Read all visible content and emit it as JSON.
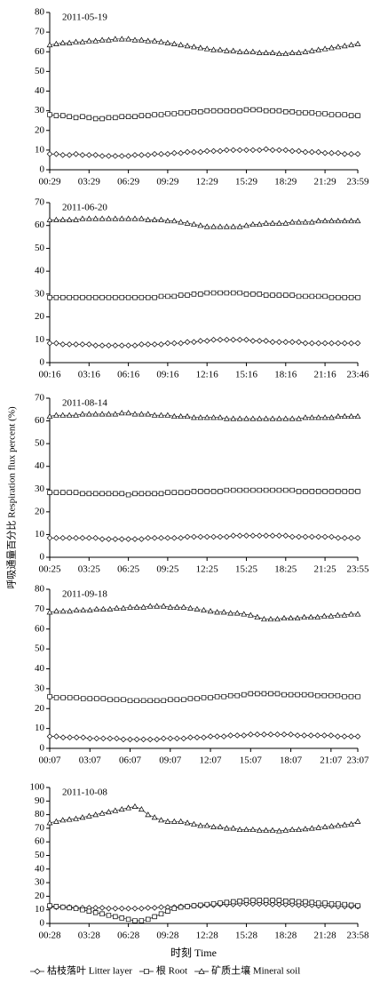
{
  "chart_data": [
    {
      "type": "line",
      "subtitle": "2011-05-19",
      "ylim": [
        0,
        80
      ],
      "yticks": [
        0,
        10,
        20,
        30,
        40,
        50,
        60,
        70,
        80
      ],
      "categories": [
        "00:29",
        null,
        null,
        null,
        null,
        null,
        "03:29",
        null,
        null,
        null,
        null,
        null,
        "06:29",
        null,
        null,
        null,
        null,
        null,
        "09:29",
        null,
        null,
        null,
        null,
        null,
        "12:29",
        null,
        null,
        null,
        null,
        null,
        "15:29",
        null,
        null,
        null,
        null,
        null,
        "18:29",
        null,
        null,
        null,
        null,
        null,
        "21:29",
        null,
        null,
        null,
        null,
        "23:59"
      ],
      "series": [
        {
          "marker": "diamond",
          "color": "#000000",
          "values": [
            8,
            8,
            7.5,
            7.5,
            8,
            7.5,
            7.5,
            7.5,
            7,
            7,
            7,
            7,
            7,
            7.5,
            7.5,
            7.5,
            8,
            8,
            8,
            8.5,
            8.5,
            9,
            9,
            9,
            9.5,
            9.5,
            9.5,
            10,
            10,
            10,
            10,
            10,
            10,
            10.5,
            10,
            10,
            10,
            9.5,
            9.5,
            9,
            9,
            9,
            8.5,
            8.5,
            8.5,
            8,
            8,
            8
          ]
        },
        {
          "marker": "square",
          "color": "#000000",
          "values": [
            28,
            27.5,
            27.5,
            27,
            26.5,
            27,
            26.5,
            26,
            26,
            26.5,
            26.5,
            27,
            27,
            27,
            27.5,
            27.5,
            28,
            28,
            28.5,
            28.5,
            29,
            29,
            29.5,
            29.5,
            30,
            30,
            30,
            30,
            30,
            30,
            30.5,
            30.5,
            30.5,
            30,
            30,
            30,
            29.5,
            29.5,
            29,
            29,
            29,
            28.5,
            28.5,
            28,
            28,
            28,
            27.5,
            27.5
          ]
        },
        {
          "marker": "triangle",
          "color": "#000000",
          "values": [
            63.5,
            64,
            64.5,
            64.5,
            65,
            65,
            65.5,
            65.5,
            66,
            66,
            66.5,
            66.5,
            66.5,
            66,
            66,
            65.5,
            65.5,
            65,
            64.5,
            64,
            63.5,
            63,
            62.5,
            62,
            61.5,
            61,
            61,
            60.5,
            60.5,
            60,
            60,
            60,
            59.5,
            59.5,
            59.5,
            59,
            59,
            59.5,
            59.5,
            60,
            60.5,
            61,
            61.5,
            62,
            62.5,
            63,
            63.5,
            64
          ]
        }
      ]
    },
    {
      "type": "line",
      "subtitle": "2011-06-20",
      "ylim": [
        0,
        70
      ],
      "yticks": [
        0,
        10,
        20,
        30,
        40,
        50,
        60,
        70
      ],
      "categories": [
        "00:16",
        null,
        null,
        null,
        null,
        null,
        "03:16",
        null,
        null,
        null,
        null,
        null,
        "06:16",
        null,
        null,
        null,
        null,
        null,
        "09:16",
        null,
        null,
        null,
        null,
        null,
        "12:16",
        null,
        null,
        null,
        null,
        null,
        "15:16",
        null,
        null,
        null,
        null,
        null,
        "18:16",
        null,
        null,
        null,
        null,
        null,
        "21:16",
        null,
        null,
        null,
        null,
        "23:46"
      ],
      "series": [
        {
          "marker": "diamond",
          "color": "#000000",
          "values": [
            8.5,
            8.5,
            8,
            8,
            8,
            8,
            8,
            7.5,
            7.5,
            7.5,
            7.5,
            7.5,
            7.5,
            7.5,
            8,
            8,
            8,
            8,
            8.5,
            8.5,
            8.5,
            9,
            9,
            9.5,
            9.5,
            10,
            10,
            10,
            10,
            10,
            10,
            9.5,
            9.5,
            9.5,
            9,
            9,
            9,
            9,
            9,
            8.5,
            8.5,
            8.5,
            8.5,
            8.5,
            8.5,
            8.5,
            8.5,
            8.5
          ]
        },
        {
          "marker": "square",
          "color": "#000000",
          "values": [
            28.5,
            28.5,
            28.5,
            28.5,
            28.5,
            28.5,
            28.5,
            28.5,
            28.5,
            28.5,
            28.5,
            28.5,
            28.5,
            28.5,
            28.5,
            28.5,
            28.5,
            29,
            29,
            29,
            29.5,
            29.5,
            30,
            30,
            30.5,
            30.5,
            30.5,
            30.5,
            30.5,
            30.5,
            30,
            30,
            30,
            29.5,
            29.5,
            29.5,
            29.5,
            29.5,
            29,
            29,
            29,
            29,
            29,
            28.5,
            28.5,
            28.5,
            28.5,
            28.5
          ]
        },
        {
          "marker": "triangle",
          "color": "#000000",
          "values": [
            62.5,
            62.5,
            62.5,
            62.5,
            62.5,
            63,
            63,
            63,
            63,
            63,
            63,
            63,
            63,
            63,
            63,
            62.5,
            62.5,
            62.5,
            62,
            62,
            61.5,
            61,
            60.5,
            60,
            59.5,
            59.5,
            59.5,
            59.5,
            59.5,
            59.5,
            60,
            60.5,
            60.5,
            61,
            61,
            61,
            61,
            61.5,
            61.5,
            61.5,
            61.5,
            62,
            62,
            62,
            62,
            62,
            62,
            62
          ]
        }
      ]
    },
    {
      "type": "line",
      "subtitle": "2011-08-14",
      "ylim": [
        0,
        70
      ],
      "yticks": [
        0,
        10,
        20,
        30,
        40,
        50,
        60,
        70
      ],
      "categories": [
        "00:25",
        null,
        null,
        null,
        null,
        null,
        "03:25",
        null,
        null,
        null,
        null,
        null,
        "06:25",
        null,
        null,
        null,
        null,
        null,
        "09:25",
        null,
        null,
        null,
        null,
        null,
        "12:25",
        null,
        null,
        null,
        null,
        null,
        "15:25",
        null,
        null,
        null,
        null,
        null,
        "18:25",
        null,
        null,
        null,
        null,
        null,
        "21:25",
        null,
        null,
        null,
        null,
        "23:55"
      ],
      "series": [
        {
          "marker": "diamond",
          "color": "#000000",
          "values": [
            8.5,
            8.5,
            8.5,
            8.5,
            8.5,
            8.5,
            8.5,
            8.5,
            8,
            8,
            8,
            8,
            8,
            8,
            8,
            8.5,
            8.5,
            8.5,
            8.5,
            8.5,
            8.5,
            9,
            9,
            9,
            9,
            9,
            9,
            9,
            9.5,
            9.5,
            9.5,
            9.5,
            9.5,
            9.5,
            9.5,
            9.5,
            9.5,
            9,
            9,
            9,
            9,
            9,
            9,
            9,
            8.5,
            8.5,
            8.5,
            8.5
          ]
        },
        {
          "marker": "square",
          "color": "#000000",
          "values": [
            28.5,
            28.5,
            28.5,
            28.5,
            28.5,
            28,
            28,
            28,
            28,
            28,
            28,
            28,
            27.5,
            28,
            28,
            28,
            28,
            28,
            28.5,
            28.5,
            28.5,
            28.5,
            29,
            29,
            29,
            29,
            29,
            29.5,
            29.5,
            29.5,
            29.5,
            29.5,
            29.5,
            29.5,
            29.5,
            29.5,
            29.5,
            29.5,
            29,
            29,
            29,
            29,
            29,
            29,
            29,
            29,
            29,
            29
          ]
        },
        {
          "marker": "triangle",
          "color": "#000000",
          "values": [
            62,
            62.5,
            62.5,
            62.5,
            62.5,
            63,
            63,
            63,
            63,
            63,
            63,
            63.5,
            63.5,
            63,
            63,
            63,
            62.5,
            62.5,
            62.5,
            62,
            62,
            62,
            61.5,
            61.5,
            61.5,
            61.5,
            61.5,
            61,
            61,
            61,
            61,
            61,
            61,
            61,
            61,
            61,
            61,
            61,
            61,
            61.5,
            61.5,
            61.5,
            61.5,
            61.5,
            62,
            62,
            62,
            62
          ]
        }
      ]
    },
    {
      "type": "line",
      "subtitle": "2011-09-18",
      "ylim": [
        0,
        80
      ],
      "yticks": [
        0,
        10,
        20,
        30,
        40,
        50,
        60,
        70,
        80
      ],
      "categories": [
        "00:07",
        null,
        null,
        null,
        null,
        null,
        "03:07",
        null,
        null,
        null,
        null,
        null,
        "06:07",
        null,
        null,
        null,
        null,
        null,
        "09:07",
        null,
        null,
        null,
        null,
        null,
        "12:07",
        null,
        null,
        null,
        null,
        null,
        "15:07",
        null,
        null,
        null,
        null,
        null,
        "18:07",
        null,
        null,
        null,
        null,
        null,
        "21:07",
        null,
        null,
        null,
        "23:07"
      ],
      "series": [
        {
          "marker": "diamond",
          "color": "#000000",
          "values": [
            6,
            6,
            5.5,
            5.5,
            5.5,
            5.5,
            5,
            5,
            5,
            5,
            5,
            4.5,
            4.5,
            4.5,
            4.5,
            4.5,
            4.5,
            5,
            5,
            5,
            5,
            5.5,
            5.5,
            5.5,
            6,
            6,
            6,
            6.5,
            6.5,
            6.5,
            7,
            7,
            7,
            7,
            7,
            7,
            7,
            6.5,
            6.5,
            6.5,
            6.5,
            6.5,
            6.5,
            6,
            6,
            6,
            6
          ]
        },
        {
          "marker": "square",
          "color": "#000000",
          "values": [
            26,
            25.5,
            25.5,
            25.5,
            25.5,
            25,
            25,
            25,
            25,
            24.5,
            24.5,
            24.5,
            24,
            24,
            24,
            24,
            24,
            24,
            24.5,
            24.5,
            24.5,
            25,
            25,
            25.5,
            25.5,
            26,
            26,
            26.5,
            26.5,
            27,
            27.5,
            27.5,
            27.5,
            27.5,
            27.5,
            27,
            27,
            27,
            27,
            27,
            26.5,
            26.5,
            26.5,
            26.5,
            26,
            26,
            26
          ]
        },
        {
          "marker": "triangle",
          "color": "#000000",
          "values": [
            68.5,
            69,
            69,
            69,
            69.5,
            69.5,
            69.5,
            70,
            70,
            70,
            70.5,
            70.5,
            71,
            71,
            71,
            71.5,
            71.5,
            71.5,
            71,
            71,
            71,
            70.5,
            70,
            69.5,
            69,
            68.5,
            68.5,
            68,
            68,
            67.5,
            67,
            66,
            65,
            65,
            65,
            65.5,
            65.5,
            65.5,
            66,
            66,
            66,
            66.5,
            66.5,
            67,
            67,
            67.5,
            67.5
          ]
        }
      ]
    },
    {
      "type": "line",
      "subtitle": "2011-10-08",
      "ylim": [
        0,
        100
      ],
      "yticks": [
        0,
        10,
        20,
        30,
        40,
        50,
        60,
        70,
        80,
        90,
        100
      ],
      "categories": [
        "00:28",
        null,
        null,
        null,
        null,
        null,
        "03:28",
        null,
        null,
        null,
        null,
        null,
        "06:28",
        null,
        null,
        null,
        null,
        null,
        "09:28",
        null,
        null,
        null,
        null,
        null,
        "12:28",
        null,
        null,
        null,
        null,
        null,
        "15:28",
        null,
        null,
        null,
        null,
        null,
        "18:28",
        null,
        null,
        null,
        null,
        null,
        "21:28",
        null,
        null,
        null,
        null,
        "23:58"
      ],
      "series": [
        {
          "marker": "diamond",
          "color": "#000000",
          "values": [
            12,
            12,
            12,
            12,
            11.5,
            11.5,
            11.5,
            11.5,
            11.5,
            11,
            11,
            11,
            11,
            11,
            11,
            11.5,
            11.5,
            12,
            12,
            12,
            12.5,
            12.5,
            13,
            13,
            13.5,
            13.5,
            14,
            14,
            14,
            14.5,
            14.5,
            14.5,
            14.5,
            14.5,
            14,
            14,
            14,
            14,
            13.5,
            13.5,
            13.5,
            13,
            13,
            13,
            12.5,
            12.5,
            12.5,
            12.5
          ]
        },
        {
          "marker": "square",
          "color": "#000000",
          "values": [
            13,
            12.5,
            12,
            11.5,
            11,
            10,
            9,
            8,
            7,
            6,
            5,
            4,
            3,
            2,
            2,
            3,
            5,
            7,
            9,
            11,
            12,
            12.5,
            13,
            13.5,
            14,
            14.5,
            15,
            15.5,
            16,
            16.5,
            17,
            17,
            17,
            17,
            17,
            17,
            16.5,
            16.5,
            16,
            16,
            15.5,
            15,
            15,
            14.5,
            14.5,
            14,
            13.5,
            13
          ]
        },
        {
          "marker": "triangle",
          "color": "#000000",
          "values": [
            74,
            75,
            76,
            76.5,
            77,
            78,
            79,
            80,
            81,
            82,
            83,
            84,
            85,
            86,
            84,
            80,
            78,
            76,
            75,
            75,
            75,
            74,
            73,
            72,
            72,
            71,
            71,
            70,
            70,
            69,
            69,
            69,
            68.5,
            68.5,
            68.5,
            68,
            68.5,
            69,
            69,
            69.5,
            70,
            70.5,
            71,
            71.5,
            72,
            72.5,
            73,
            75
          ]
        }
      ]
    }
  ],
  "x_label": "时刻 Time",
  "y_label": "呼吸通量百分比 Respiration flux percent (%)",
  "legend": [
    {
      "name": "枯枝落叶 Litter layer",
      "marker": "diamond"
    },
    {
      "name": "根 Root",
      "marker": "square"
    },
    {
      "name": "矿质土壤 Mineral soil",
      "marker": "triangle"
    }
  ]
}
